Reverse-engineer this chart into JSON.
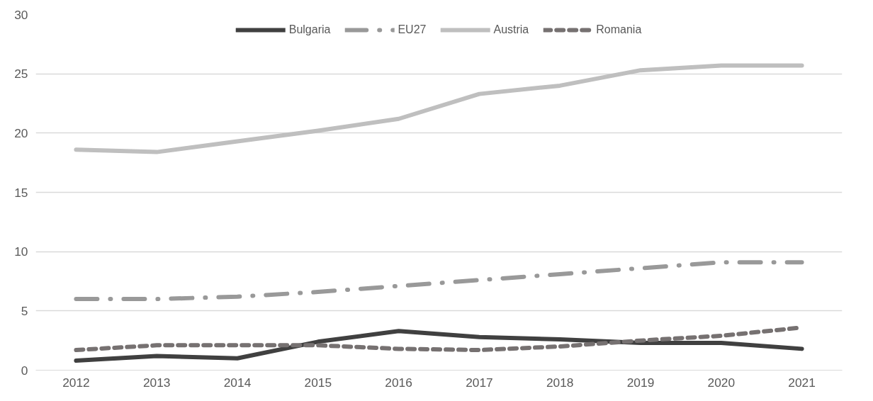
{
  "chart_data": {
    "type": "line",
    "categories": [
      "2012",
      "2013",
      "2014",
      "2015",
      "2016",
      "2017",
      "2018",
      "2019",
      "2020",
      "2021"
    ],
    "series": [
      {
        "name": "Bulgaria",
        "color": "#404040",
        "line_style": "solid",
        "values": [
          0.8,
          1.2,
          1.0,
          2.4,
          3.3,
          2.8,
          2.6,
          2.3,
          2.3,
          1.8
        ]
      },
      {
        "name": "EU27",
        "color": "#999999",
        "line_style": "dashdot",
        "values": [
          6.0,
          6.0,
          6.2,
          6.6,
          7.1,
          7.6,
          8.1,
          8.6,
          9.1,
          9.1
        ]
      },
      {
        "name": "Austria",
        "color": "#bfbfbf",
        "line_style": "solid",
        "values": [
          18.6,
          18.4,
          19.3,
          20.2,
          21.2,
          23.3,
          24.0,
          25.3,
          25.7,
          25.7
        ]
      },
      {
        "name": "Romania",
        "color": "#767171",
        "line_style": "dashed",
        "values": [
          1.7,
          2.1,
          2.1,
          2.1,
          1.8,
          1.7,
          2.0,
          2.5,
          2.9,
          3.6
        ]
      }
    ],
    "ylim": [
      0,
      30
    ],
    "yticks": [
      0,
      5,
      10,
      15,
      20,
      25,
      30
    ],
    "grid": "y",
    "legend": "top",
    "marker": "none"
  }
}
